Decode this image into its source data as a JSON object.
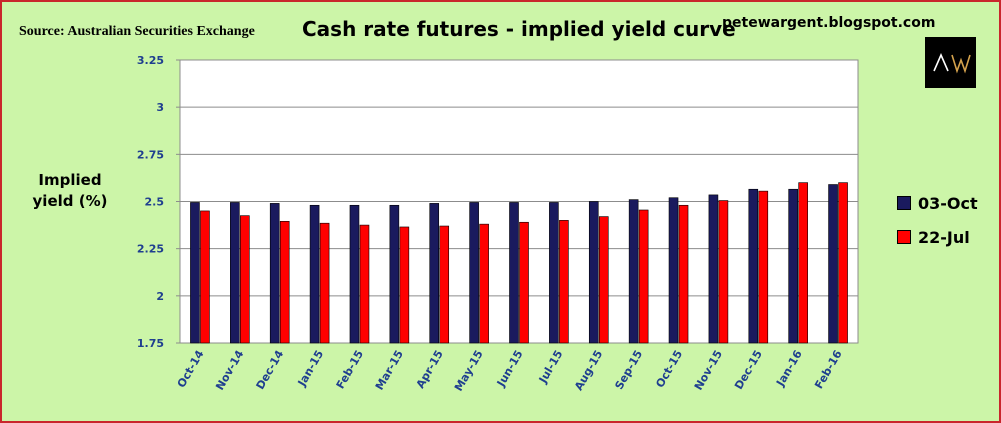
{
  "header": {
    "source": "Source: Australian Securities Exchange",
    "title": "Cash rate futures - implied yield curve",
    "blog": "petewargent.blogspot.com",
    "logo_text": "AW"
  },
  "colors": {
    "background": "#ccf5a8",
    "border": "#c9262c",
    "series1": "#1a1a5e",
    "series2": "#ff0000",
    "grid": "#8c8c8c"
  },
  "chart_data": {
    "type": "bar",
    "title": "Cash rate futures - implied yield curve",
    "ylabel_lines": [
      "Implied",
      "yield (%)"
    ],
    "xlabel": "",
    "ylim": [
      1.75,
      3.25
    ],
    "yticks": [
      1.75,
      2,
      2.25,
      2.5,
      2.75,
      3,
      3.25
    ],
    "ytick_labels": [
      "1.75",
      "2",
      "2.25",
      "2.5",
      "2.75",
      "3",
      "3.25"
    ],
    "grid": true,
    "legend_position": "right",
    "categories": [
      "Oct-14",
      "Nov-14",
      "Dec-14",
      "Jan-15",
      "Feb-15",
      "Mar-15",
      "Apr-15",
      "May-15",
      "Jun-15",
      "Jul-15",
      "Aug-15",
      "Sep-15",
      "Oct-15",
      "Nov-15",
      "Dec-15",
      "Jan-16",
      "Feb-16"
    ],
    "series": [
      {
        "name": "03-Oct",
        "color": "#1a1a5e",
        "values": [
          2.495,
          2.495,
          2.49,
          2.48,
          2.48,
          2.48,
          2.49,
          2.495,
          2.495,
          2.495,
          2.5,
          2.51,
          2.52,
          2.535,
          2.565,
          2.565,
          2.59
        ]
      },
      {
        "name": "22-Jul",
        "color": "#ff0000",
        "values": [
          2.45,
          2.425,
          2.395,
          2.385,
          2.375,
          2.365,
          2.37,
          2.38,
          2.39,
          2.4,
          2.42,
          2.455,
          2.48,
          2.505,
          2.555,
          2.6,
          2.6
        ]
      }
    ]
  }
}
